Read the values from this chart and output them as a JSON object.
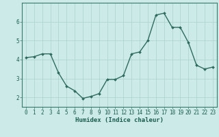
{
  "x": [
    0,
    1,
    2,
    3,
    4,
    5,
    6,
    7,
    8,
    9,
    10,
    11,
    12,
    13,
    14,
    15,
    16,
    17,
    18,
    19,
    20,
    21,
    22,
    23
  ],
  "y": [
    4.1,
    4.15,
    4.3,
    4.3,
    3.3,
    2.6,
    2.35,
    1.95,
    2.05,
    2.2,
    2.95,
    2.95,
    3.15,
    4.3,
    4.4,
    5.0,
    6.35,
    6.45,
    5.7,
    5.7,
    4.9,
    3.7,
    3.5,
    3.6
  ],
  "line_color": "#2e6b5e",
  "marker": "D",
  "marker_size": 2.0,
  "bg_color": "#cceae7",
  "grid_color": "#b0d5d0",
  "xlabel": "Humidex (Indice chaleur)",
  "ylim": [
    1.5,
    7.0
  ],
  "xlim": [
    -0.5,
    23.5
  ],
  "yticks": [
    2,
    3,
    4,
    5,
    6
  ],
  "xticks": [
    0,
    1,
    2,
    3,
    4,
    5,
    6,
    7,
    8,
    9,
    10,
    11,
    12,
    13,
    14,
    15,
    16,
    17,
    18,
    19,
    20,
    21,
    22,
    23
  ],
  "tick_color": "#1a5c50",
  "label_fontsize": 6.5,
  "tick_fontsize": 5.5,
  "axis_color": "#3a7a6a",
  "linewidth": 1.0
}
